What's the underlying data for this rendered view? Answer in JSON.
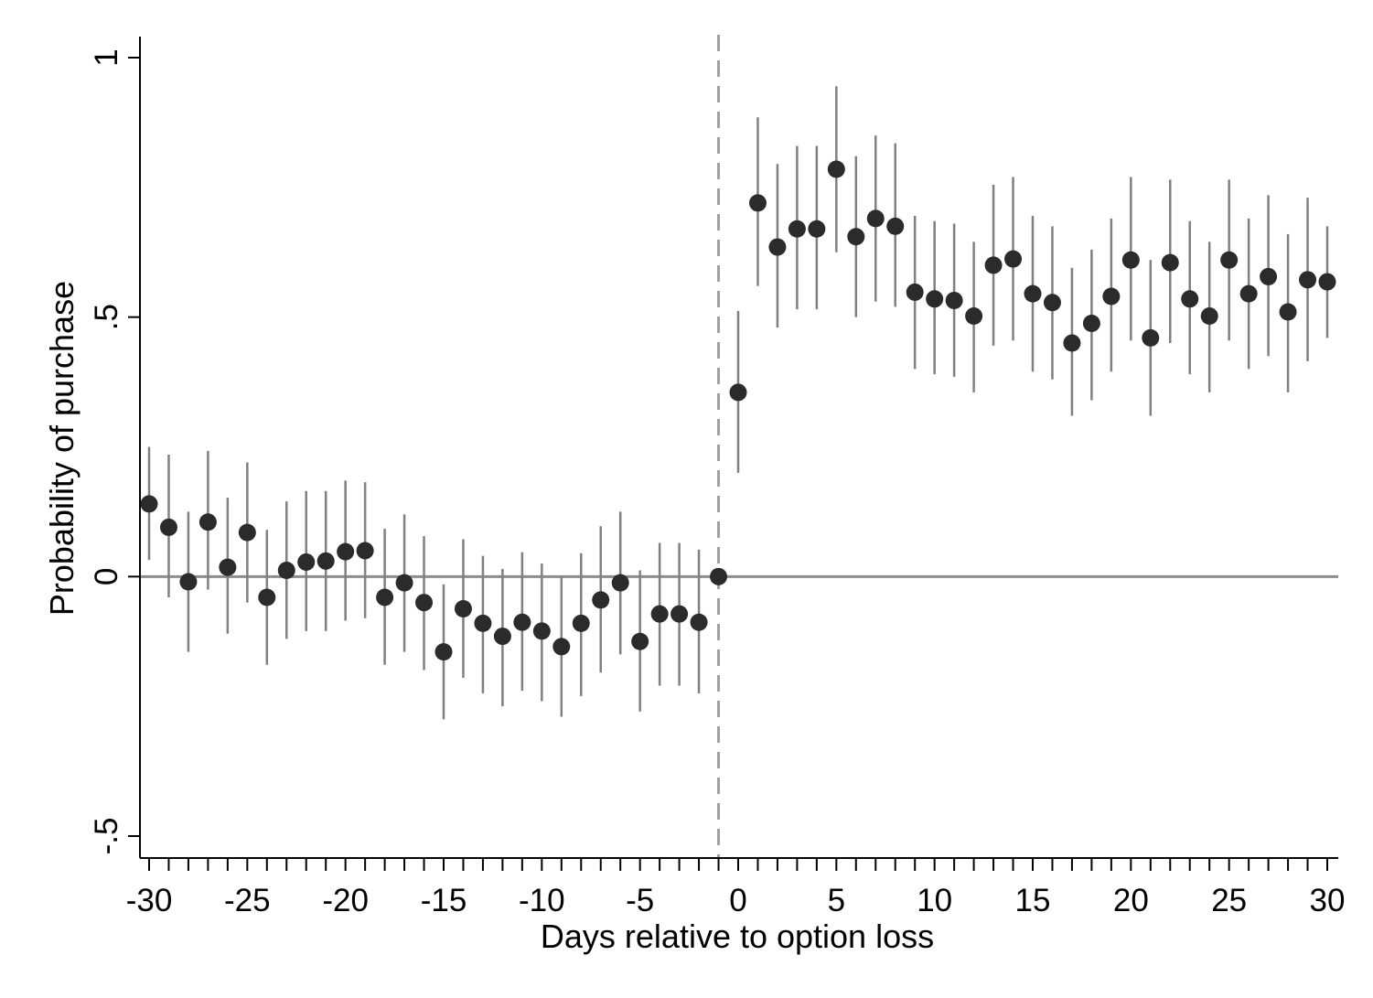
{
  "chart_data": {
    "type": "scatter",
    "title": "",
    "xlabel": "Days relative to option loss",
    "ylabel": "Probability of purchase",
    "xlim": [
      -30,
      30
    ],
    "ylim": [
      -0.5,
      1
    ],
    "x_ticks": [
      -30,
      -25,
      -20,
      -15,
      -10,
      -5,
      0,
      5,
      10,
      15,
      20,
      25,
      30
    ],
    "x_tick_labels": [
      "-30",
      "-25",
      "-20",
      "-15",
      "-10",
      "-5",
      "0",
      "5",
      "10",
      "15",
      "20",
      "25",
      "30"
    ],
    "y_ticks": [
      -0.5,
      0,
      0.5,
      1
    ],
    "y_tick_labels": [
      "-.5",
      "0",
      ".5",
      "1"
    ],
    "reference_lines": {
      "horizontal_y": 0,
      "vertical_dashed_x": -1
    },
    "grid": false,
    "legend": "none",
    "colors": {
      "point": "#2b2b2b",
      "error_bar": "#808080",
      "reference_line": "#8c8c8c",
      "dashed_line": "#a0a0a0",
      "axis": "#000000"
    },
    "x": [
      -30,
      -29,
      -28,
      -27,
      -26,
      -25,
      -24,
      -23,
      -22,
      -21,
      -20,
      -19,
      -18,
      -17,
      -16,
      -15,
      -14,
      -13,
      -12,
      -11,
      -10,
      -9,
      -8,
      -7,
      -6,
      -5,
      -4,
      -3,
      -2,
      -1,
      0,
      1,
      2,
      3,
      4,
      5,
      6,
      7,
      8,
      9,
      10,
      11,
      12,
      13,
      14,
      15,
      16,
      17,
      18,
      19,
      20,
      21,
      22,
      23,
      24,
      25,
      26,
      27,
      28,
      29,
      30
    ],
    "y": [
      0.14,
      0.095,
      -0.01,
      0.105,
      0.018,
      0.085,
      -0.04,
      0.012,
      0.028,
      0.03,
      0.048,
      0.05,
      -0.04,
      -0.012,
      -0.05,
      -0.145,
      -0.062,
      -0.09,
      -0.115,
      -0.088,
      -0.105,
      -0.135,
      -0.09,
      -0.045,
      -0.012,
      -0.125,
      -0.072,
      -0.072,
      -0.088,
      0,
      0.355,
      0.72,
      0.635,
      0.67,
      0.67,
      0.785,
      0.655,
      0.69,
      0.675,
      0.548,
      0.535,
      0.532,
      0.502,
      0.6,
      0.612,
      0.545,
      0.528,
      0.45,
      0.488,
      0.54,
      0.61,
      0.46,
      0.605,
      0.535,
      0.502,
      0.61,
      0.545,
      0.578,
      0.51,
      0.572,
      0.568
    ],
    "ci_low": [
      0.032,
      -0.04,
      -0.145,
      -0.025,
      -0.11,
      -0.05,
      -0.17,
      -0.12,
      -0.105,
      -0.105,
      -0.085,
      -0.08,
      -0.17,
      -0.145,
      -0.18,
      -0.275,
      -0.195,
      -0.225,
      -0.25,
      -0.22,
      -0.24,
      -0.27,
      -0.23,
      -0.185,
      -0.15,
      -0.26,
      -0.21,
      -0.21,
      -0.225,
      null,
      0.2,
      0.56,
      0.48,
      0.515,
      0.515,
      0.625,
      0.5,
      0.53,
      0.52,
      0.4,
      0.39,
      0.385,
      0.355,
      0.445,
      0.455,
      0.395,
      0.38,
      0.31,
      0.34,
      0.395,
      0.455,
      0.31,
      0.45,
      0.39,
      0.355,
      0.455,
      0.4,
      0.425,
      0.355,
      0.415,
      0.46
    ],
    "ci_high": [
      0.25,
      0.235,
      0.125,
      0.242,
      0.152,
      0.22,
      0.09,
      0.145,
      0.165,
      0.165,
      0.185,
      0.182,
      0.092,
      0.12,
      0.078,
      -0.015,
      0.072,
      0.04,
      0.015,
      0.047,
      0.025,
      0.0,
      0.045,
      0.097,
      0.125,
      0.012,
      0.065,
      0.065,
      0.052,
      null,
      0.512,
      0.885,
      0.795,
      0.83,
      0.83,
      0.945,
      0.81,
      0.85,
      0.835,
      0.695,
      0.685,
      0.68,
      0.645,
      0.755,
      0.77,
      0.695,
      0.675,
      0.595,
      0.63,
      0.69,
      0.77,
      0.61,
      0.765,
      0.685,
      0.645,
      0.765,
      0.69,
      0.735,
      0.66,
      0.73,
      0.675
    ]
  }
}
